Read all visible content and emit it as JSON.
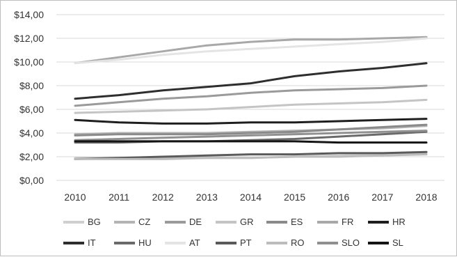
{
  "chart_data": {
    "type": "line",
    "title": "",
    "xlabel": "",
    "ylabel": "",
    "ylim": [
      0,
      14
    ],
    "yticks": [
      0,
      2,
      4,
      6,
      8,
      10,
      12,
      14
    ],
    "ytick_labels": [
      "$0,00",
      "$2,00",
      "$4,00",
      "$6,00",
      "$8,00",
      "$10,00",
      "$12,00",
      "$14,00"
    ],
    "x": [
      "2010",
      "2011",
      "2012",
      "2013",
      "2014",
      "2015",
      "2016",
      "2017",
      "2018"
    ],
    "grid": "horizontal",
    "legend_placement": "bottom",
    "series": [
      {
        "name": "BG",
        "color": "#cfcfcf",
        "values": [
          1.9,
          1.9,
          1.9,
          1.9,
          1.9,
          2.0,
          2.1,
          2.2,
          2.3
        ]
      },
      {
        "name": "CZ",
        "color": "#b4b4b4",
        "values": [
          3.9,
          4.0,
          4.0,
          4.0,
          4.1,
          4.2,
          4.3,
          4.4,
          4.6
        ]
      },
      {
        "name": "DE",
        "color": "#9a9a9a",
        "values": [
          6.3,
          6.6,
          6.9,
          7.1,
          7.4,
          7.6,
          7.7,
          7.8,
          8.0
        ]
      },
      {
        "name": "GR",
        "color": "#c4c4c4",
        "values": [
          5.7,
          5.8,
          5.9,
          6.0,
          6.2,
          6.4,
          6.5,
          6.6,
          6.8
        ]
      },
      {
        "name": "ES",
        "color": "#8a8a8a",
        "values": [
          3.8,
          3.9,
          3.9,
          3.9,
          4.0,
          4.1,
          4.3,
          4.5,
          4.7
        ]
      },
      {
        "name": "FR",
        "color": "#a8a8a8",
        "values": [
          9.9,
          10.4,
          10.9,
          11.4,
          11.7,
          11.9,
          11.9,
          12.0,
          12.1
        ]
      },
      {
        "name": "HR",
        "color": "#1e1e1e",
        "values": [
          5.1,
          4.9,
          4.8,
          4.8,
          4.9,
          4.9,
          5.0,
          5.1,
          5.2
        ]
      },
      {
        "name": "IT",
        "color": "#2e2e2e",
        "values": [
          6.9,
          7.2,
          7.6,
          7.9,
          8.2,
          8.8,
          9.2,
          9.5,
          9.9
        ]
      },
      {
        "name": "HU",
        "color": "#6a6a6a",
        "values": [
          3.2,
          3.2,
          3.3,
          3.3,
          3.4,
          3.5,
          3.7,
          3.9,
          4.1
        ]
      },
      {
        "name": "AT",
        "color": "#e4e4e4",
        "values": [
          9.9,
          10.2,
          10.6,
          10.9,
          11.1,
          11.3,
          11.5,
          11.7,
          12.0
        ]
      },
      {
        "name": "PT",
        "color": "#5a5a5a",
        "values": [
          1.8,
          1.9,
          2.0,
          2.1,
          2.2,
          2.2,
          2.3,
          2.3,
          2.4
        ]
      },
      {
        "name": "RO",
        "color": "#bcbcbc",
        "values": [
          1.8,
          1.8,
          1.8,
          1.9,
          1.9,
          2.0,
          2.0,
          2.1,
          2.2
        ]
      },
      {
        "name": "SLO",
        "color": "#909090",
        "values": [
          3.4,
          3.5,
          3.6,
          3.7,
          3.8,
          3.9,
          4.0,
          4.1,
          4.2
        ]
      },
      {
        "name": "SL",
        "color": "#141414",
        "values": [
          3.3,
          3.3,
          3.3,
          3.3,
          3.3,
          3.3,
          3.2,
          3.2,
          3.2
        ]
      }
    ]
  }
}
